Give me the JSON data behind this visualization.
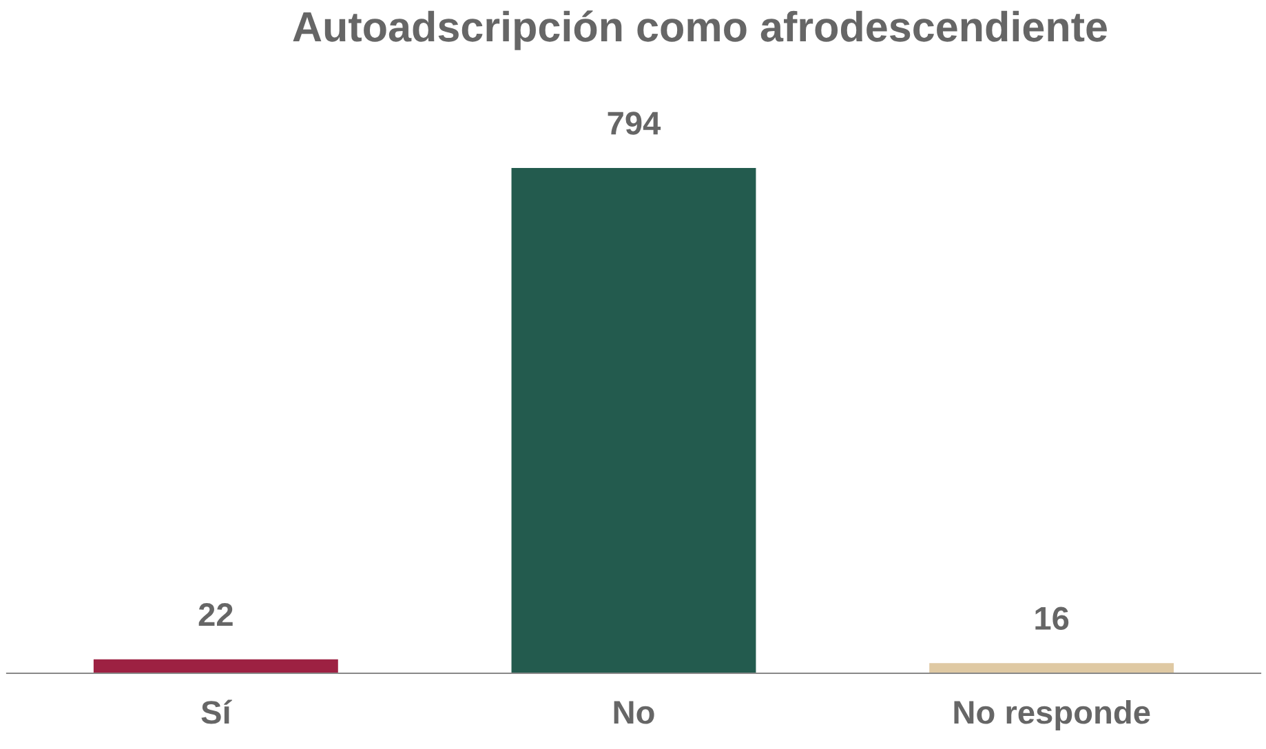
{
  "chart_data": {
    "type": "bar",
    "title": "Autoadscripción como afrodescendiente",
    "categories": [
      "Sí",
      "No",
      "No responde"
    ],
    "values": [
      22,
      794,
      16
    ],
    "colors": [
      "#9d2142",
      "#235b4e",
      "#dfc9a3"
    ],
    "data_labels": true,
    "grid": false,
    "legend": false,
    "tick_labels": "x"
  }
}
